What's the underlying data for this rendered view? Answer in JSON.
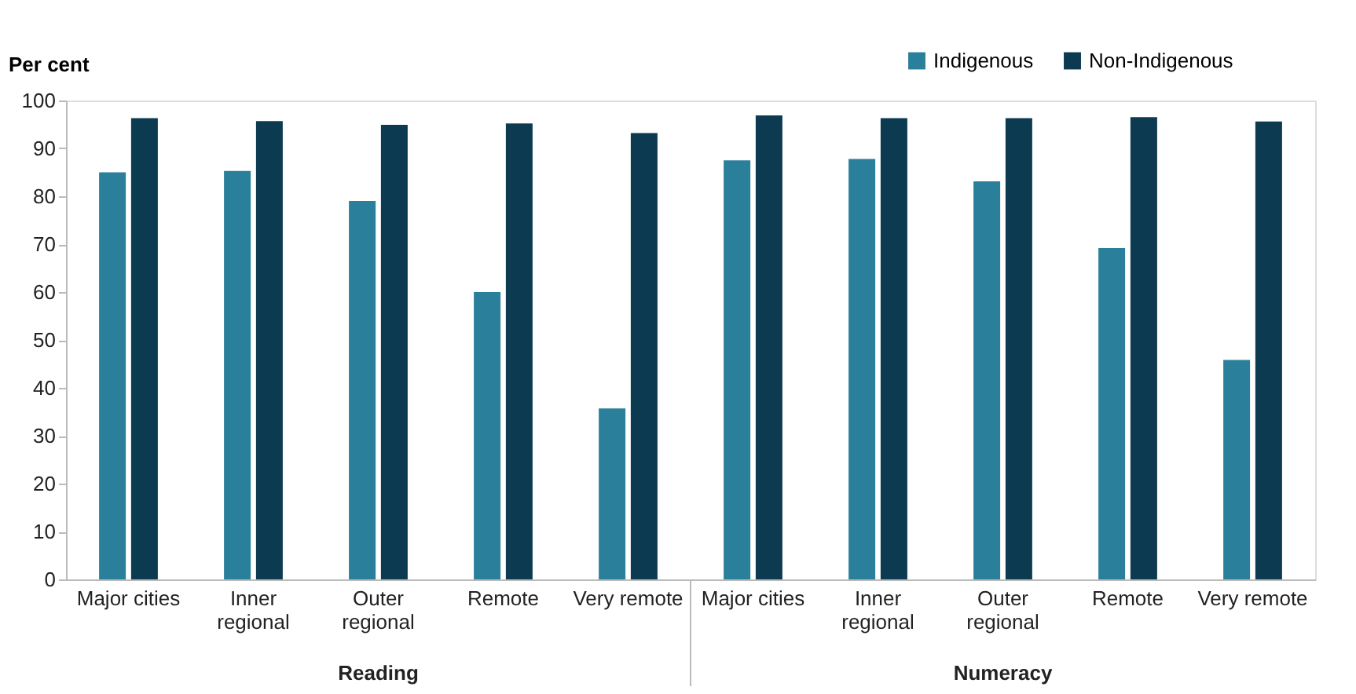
{
  "chart_data": {
    "type": "bar",
    "ylabel": "Per cent",
    "categories": [
      "Major cities",
      "Inner regional",
      "Outer regional",
      "Remote",
      "Very remote",
      "Major cities",
      "Inner regional",
      "Outer regional",
      "Remote",
      "Very remote"
    ],
    "series": [
      {
        "name": "Indigenous",
        "color": "#2a7f9a",
        "values": [
          85.0,
          85.3,
          79.0,
          60.0,
          35.7,
          87.5,
          87.8,
          83.1,
          69.2,
          45.8
        ]
      },
      {
        "name": "Non-Indigenous",
        "color": "#0c3a50",
        "values": [
          96.3,
          95.7,
          94.9,
          95.2,
          93.2,
          96.9,
          96.3,
          96.3,
          96.5,
          95.6
        ]
      }
    ],
    "annotations": [
      "Reading",
      "Numeracy"
    ],
    "ylim": [
      0,
      100
    ],
    "yticks": [
      0,
      10,
      20,
      30,
      40,
      50,
      60,
      70,
      80,
      90,
      100
    ],
    "grid": false,
    "legend": "top right"
  }
}
